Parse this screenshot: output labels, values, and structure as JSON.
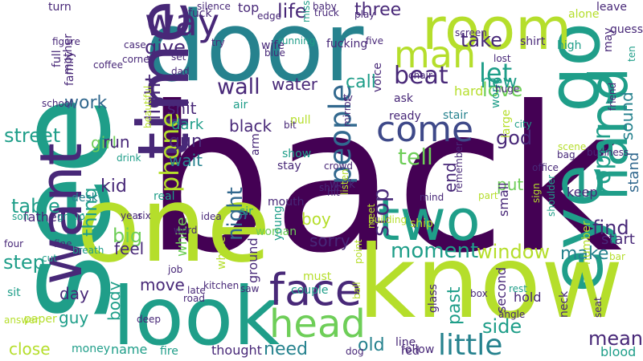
{
  "palette": {
    "dark_purple": "#440154",
    "indigo": "#482878",
    "blue_purple": "#3e4989",
    "blue": "#31688e",
    "teal_blue": "#26828e",
    "teal": "#1f9e89",
    "green": "#35b779",
    "light_green": "#6ece58",
    "yellow_green": "#b5de2b",
    "yellow": "#fde725"
  },
  "words": [
    {
      "t": "back",
      "c": "dark_purple"
    },
    {
      "t": "see",
      "c": "teal"
    },
    {
      "t": "door",
      "c": "teal_blue"
    },
    {
      "t": "go",
      "c": "teal"
    },
    {
      "t": "room",
      "c": "yellow_green"
    },
    {
      "t": "eye",
      "c": "teal"
    },
    {
      "t": "one",
      "c": "yellow_green"
    },
    {
      "t": "know",
      "c": "yellow_green"
    },
    {
      "t": "look",
      "c": "teal"
    },
    {
      "t": "two",
      "c": "teal"
    },
    {
      "t": "time",
      "c": "indigo"
    },
    {
      "t": "want",
      "c": "indigo"
    },
    {
      "t": "hand",
      "c": "teal"
    },
    {
      "t": "face",
      "c": "indigo"
    },
    {
      "t": "head",
      "c": "light_green"
    },
    {
      "t": "way",
      "c": "indigo"
    },
    {
      "t": "man",
      "c": "yellow_green"
    },
    {
      "t": "come",
      "c": "blue_purple"
    },
    {
      "t": "life",
      "c": "indigo"
    },
    {
      "t": "three",
      "c": "indigo"
    },
    {
      "t": "take",
      "c": "indigo"
    },
    {
      "t": "let",
      "c": "teal"
    },
    {
      "t": "beat",
      "c": "indigo"
    },
    {
      "t": "new",
      "c": "teal"
    },
    {
      "t": "love",
      "c": "light_green"
    },
    {
      "t": "tell",
      "c": "light_green"
    },
    {
      "t": "people",
      "c": "blue"
    },
    {
      "t": "phone",
      "c": "yellow_green"
    },
    {
      "t": "light",
      "c": "indigo"
    },
    {
      "t": "give",
      "c": "indigo"
    },
    {
      "t": "shit",
      "c": "indigo"
    },
    {
      "t": "wall",
      "c": "indigo"
    },
    {
      "t": "water",
      "c": "indigo"
    },
    {
      "t": "call",
      "c": "teal"
    },
    {
      "t": "work",
      "c": "blue"
    },
    {
      "t": "street",
      "c": "teal"
    },
    {
      "t": "girl",
      "c": "light_green"
    },
    {
      "t": "run",
      "c": "indigo"
    },
    {
      "t": "black",
      "c": "indigo"
    },
    {
      "t": "gun",
      "c": "indigo"
    },
    {
      "t": "dark",
      "c": "teal"
    },
    {
      "t": "wait",
      "c": "teal_blue"
    },
    {
      "t": "kid",
      "c": "indigo"
    },
    {
      "t": "table",
      "c": "teal"
    },
    {
      "t": "open",
      "c": "teal"
    },
    {
      "t": "find",
      "c": "indigo"
    },
    {
      "t": "put",
      "c": "light_green"
    },
    {
      "t": "god",
      "c": "indigo"
    },
    {
      "t": "end",
      "c": "indigo"
    },
    {
      "t": "stop",
      "c": "indigo"
    },
    {
      "t": "sound",
      "c": "teal_blue"
    },
    {
      "t": "stand",
      "c": "blue"
    },
    {
      "t": "small",
      "c": "indigo"
    },
    {
      "t": "keep",
      "c": "indigo"
    },
    {
      "t": "big",
      "c": "light_green"
    },
    {
      "t": "thing",
      "c": "teal"
    },
    {
      "t": "night",
      "c": "blue"
    },
    {
      "t": "white",
      "c": "light_green"
    },
    {
      "t": "sorry",
      "c": "indigo"
    },
    {
      "t": "boy",
      "c": "yellow_green"
    },
    {
      "t": "moment",
      "c": "teal"
    },
    {
      "t": "window",
      "c": "yellow_green"
    },
    {
      "t": "make",
      "c": "teal_blue"
    },
    {
      "t": "start",
      "c": "indigo"
    },
    {
      "t": "step",
      "c": "teal"
    },
    {
      "t": "feel",
      "c": "indigo"
    },
    {
      "t": "day",
      "c": "indigo"
    },
    {
      "t": "move",
      "c": "indigo"
    },
    {
      "t": "guy",
      "c": "teal"
    },
    {
      "t": "body",
      "c": "teal"
    },
    {
      "t": "little",
      "c": "teal_blue"
    },
    {
      "t": "side",
      "c": "teal"
    },
    {
      "t": "mean",
      "c": "indigo"
    },
    {
      "t": "hold",
      "c": "indigo"
    },
    {
      "t": "past",
      "c": "teal"
    },
    {
      "t": "old",
      "c": "teal_blue"
    },
    {
      "t": "need",
      "c": "teal_blue"
    },
    {
      "t": "close",
      "c": "yellow_green"
    },
    {
      "t": "money",
      "c": "teal"
    },
    {
      "t": "name",
      "c": "teal"
    },
    {
      "t": "fire",
      "c": "teal"
    },
    {
      "t": "thought",
      "c": "indigo"
    },
    {
      "t": "blood",
      "c": "teal"
    },
    {
      "t": "red",
      "c": "indigo"
    },
    {
      "t": "line",
      "c": "indigo"
    },
    {
      "t": "glass",
      "c": "indigo"
    },
    {
      "t": "second",
      "c": "indigo"
    },
    {
      "t": "ground",
      "c": "indigo"
    },
    {
      "t": "woman",
      "c": "light_green"
    },
    {
      "t": "young",
      "c": "teal"
    },
    {
      "t": "mouth",
      "c": "indigo"
    },
    {
      "t": "arm",
      "c": "indigo"
    },
    {
      "t": "sir",
      "c": "teal"
    },
    {
      "t": "show",
      "c": "teal"
    },
    {
      "t": "real",
      "c": "teal"
    },
    {
      "t": "desk",
      "c": "teal_blue"
    },
    {
      "t": "must",
      "c": "yellow_green"
    },
    {
      "t": "walk",
      "c": "indigo"
    },
    {
      "t": "top",
      "c": "indigo"
    },
    {
      "t": "air",
      "c": "teal"
    },
    {
      "t": "hard",
      "c": "yellow_green"
    },
    {
      "t": "fuck",
      "c": "indigo"
    },
    {
      "t": "father",
      "c": "indigo"
    },
    {
      "t": "family",
      "c": "indigo"
    },
    {
      "t": "mother",
      "c": "indigo"
    },
    {
      "t": "turn",
      "c": "indigo"
    },
    {
      "t": "leave",
      "c": "indigo"
    },
    {
      "t": "alone",
      "c": "yellow_green"
    },
    {
      "t": "world",
      "c": "teal"
    },
    {
      "t": "voice",
      "c": "indigo"
    },
    {
      "t": "ask",
      "c": "indigo"
    },
    {
      "t": "ready",
      "c": "indigo"
    },
    {
      "t": "stair",
      "c": "teal_blue"
    },
    {
      "t": "silence",
      "c": "indigo"
    },
    {
      "t": "word",
      "c": "indigo"
    },
    {
      "t": "fine",
      "c": "indigo"
    },
    {
      "t": "four",
      "c": "indigo"
    },
    {
      "t": "cut",
      "c": "teal"
    },
    {
      "t": "son",
      "c": "teal"
    },
    {
      "t": "group",
      "c": "teal"
    },
    {
      "t": "year",
      "c": "indigo"
    },
    {
      "t": "six",
      "c": "indigo"
    },
    {
      "t": "idea",
      "c": "indigo"
    },
    {
      "t": "job",
      "c": "indigo"
    },
    {
      "t": "late",
      "c": "indigo"
    },
    {
      "t": "road",
      "c": "indigo"
    },
    {
      "t": "kitchen",
      "c": "indigo"
    },
    {
      "t": "whole",
      "c": "yellow_green"
    },
    {
      "t": "saw",
      "c": "indigo"
    },
    {
      "t": "deep",
      "c": "indigo"
    },
    {
      "t": "answer",
      "c": "yellow_green"
    },
    {
      "t": "paper",
      "c": "yellow_green"
    },
    {
      "t": "dog",
      "c": "indigo"
    },
    {
      "t": "follow",
      "c": "indigo"
    },
    {
      "t": "couple",
      "c": "teal"
    },
    {
      "t": "box",
      "c": "indigo"
    },
    {
      "t": "angle",
      "c": "indigo"
    },
    {
      "t": "neck",
      "c": "indigo"
    },
    {
      "t": "rest",
      "c": "teal"
    },
    {
      "t": "number",
      "c": "yellow_green"
    },
    {
      "t": "seat",
      "c": "indigo"
    },
    {
      "t": "bar",
      "c": "yellow_green"
    },
    {
      "t": "guess",
      "c": "indigo"
    },
    {
      "t": "may",
      "c": "indigo"
    },
    {
      "t": "ten",
      "c": "teal"
    },
    {
      "t": "high",
      "c": "teal"
    },
    {
      "t": "shirt",
      "c": "indigo"
    },
    {
      "t": "lost",
      "c": "indigo"
    },
    {
      "t": "screen",
      "c": "indigo"
    },
    {
      "t": "huge",
      "c": "indigo"
    },
    {
      "t": "city",
      "c": "teal"
    },
    {
      "t": "bag",
      "c": "indigo"
    },
    {
      "t": "large",
      "c": "yellow_green"
    },
    {
      "t": "office",
      "c": "indigo"
    },
    {
      "t": "scene",
      "c": "yellow_green"
    },
    {
      "t": "business",
      "c": "indigo"
    },
    {
      "t": "friend",
      "c": "indigo"
    },
    {
      "t": "part",
      "c": "yellow_green"
    },
    {
      "t": "remember",
      "c": "indigo"
    },
    {
      "t": "sign",
      "c": "yellow_green"
    },
    {
      "t": "shoulder",
      "c": "teal"
    },
    {
      "t": "mind",
      "c": "indigo"
    },
    {
      "t": "ship",
      "c": "yellow_green"
    },
    {
      "t": "meet",
      "c": "yellow_green"
    },
    {
      "t": "building",
      "c": "yellow_green"
    },
    {
      "t": "point",
      "c": "yellow_green"
    },
    {
      "t": "ball",
      "c": "yellow_green"
    },
    {
      "t": "hit",
      "c": "indigo"
    },
    {
      "t": "listen",
      "c": "yellow_green"
    },
    {
      "t": "shut",
      "c": "indigo"
    },
    {
      "t": "crowd",
      "c": "indigo"
    },
    {
      "t": "stay",
      "c": "indigo"
    },
    {
      "t": "mirror",
      "c": "indigo"
    },
    {
      "t": "pull",
      "c": "yellow_green"
    },
    {
      "t": "bit",
      "c": "indigo"
    },
    {
      "t": "tv",
      "c": "indigo"
    },
    {
      "t": "chair",
      "c": "indigo"
    },
    {
      "t": "fucking",
      "c": "indigo"
    },
    {
      "t": "miss",
      "c": "teal"
    },
    {
      "t": "five",
      "c": "indigo"
    },
    {
      "t": "truck",
      "c": "indigo"
    },
    {
      "t": "play",
      "c": "indigo"
    },
    {
      "t": "baby",
      "c": "indigo"
    },
    {
      "t": "edge",
      "c": "indigo"
    },
    {
      "t": "wife",
      "c": "indigo"
    },
    {
      "t": "blue",
      "c": "indigo"
    },
    {
      "t": "running",
      "c": "teal"
    },
    {
      "t": "try",
      "c": "indigo"
    },
    {
      "t": "set",
      "c": "indigo"
    },
    {
      "t": "dad",
      "c": "indigo"
    },
    {
      "t": "corner",
      "c": "indigo"
    },
    {
      "t": "case",
      "c": "indigo"
    },
    {
      "t": "coffee",
      "c": "indigo"
    },
    {
      "t": "figure",
      "c": "indigo"
    },
    {
      "t": "school",
      "c": "indigo"
    },
    {
      "t": "full",
      "c": "indigo"
    },
    {
      "t": "beautiful",
      "c": "yellow_green"
    },
    {
      "t": "drink",
      "c": "teal"
    },
    {
      "t": "breath",
      "c": "teal"
    },
    {
      "t": "sit",
      "c": "teal"
    }
  ]
}
